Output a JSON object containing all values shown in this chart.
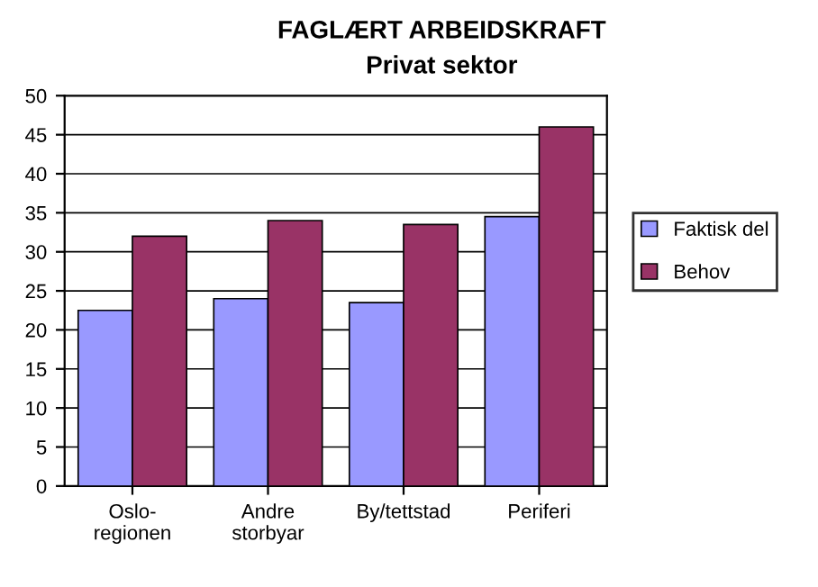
{
  "chart_data": {
    "type": "bar",
    "title": "FAGLÆRT ARBEIDSKRAFT",
    "subtitle": "Privat sektor",
    "categories": [
      "Oslo-\nregionen",
      "Andre\nstorbyar",
      "By/tettstad",
      "Periferi"
    ],
    "series": [
      {
        "name": "Faktisk del",
        "color": "#9999ff",
        "values": [
          22.5,
          24,
          23.5,
          34.5
        ]
      },
      {
        "name": "Behov",
        "color": "#993366",
        "values": [
          32,
          34,
          33.5,
          46
        ]
      }
    ],
    "ylim": [
      0,
      50
    ],
    "yticks": [
      0,
      5,
      10,
      15,
      20,
      25,
      30,
      35,
      40,
      45,
      50
    ],
    "grid": "y",
    "legend": "right"
  }
}
